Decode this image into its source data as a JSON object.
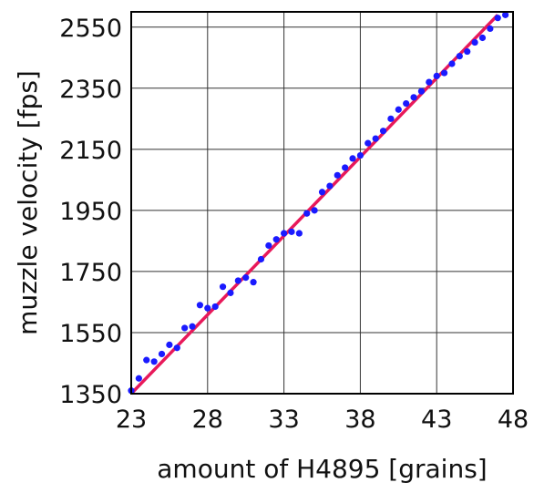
{
  "chart_data": {
    "type": "scatter",
    "title": "",
    "xlabel": "amount of H4895 [grains]",
    "ylabel": "muzzle velocity [fps]",
    "xlim": [
      23,
      48
    ],
    "ylim": [
      1350,
      2600
    ],
    "xticks": [
      23,
      28,
      33,
      38,
      43,
      48
    ],
    "yticks": [
      1350,
      1550,
      1750,
      1950,
      2150,
      2350,
      2550
    ],
    "grid": true,
    "point_color": "#1a1aff",
    "fit_color": "#e8195a",
    "series": [
      {
        "type": "scatter",
        "x": [
          23.0,
          23.5,
          24.0,
          24.5,
          25.0,
          25.5,
          26.0,
          26.5,
          27.0,
          27.5,
          28.0,
          28.5,
          29.0,
          29.5,
          30.0,
          30.5,
          31.0,
          31.5,
          32.0,
          32.5,
          33.0,
          33.5,
          34.0,
          34.5,
          35.0,
          35.5,
          36.0,
          36.5,
          37.0,
          37.5,
          38.0,
          38.5,
          39.0,
          39.5,
          40.0,
          40.5,
          41.0,
          41.5,
          42.0,
          42.5,
          43.0,
          43.5,
          44.0,
          44.5,
          45.0,
          45.5,
          46.0,
          46.5,
          47.0,
          47.5
        ],
        "y": [
          1360,
          1400,
          1460,
          1455,
          1480,
          1510,
          1500,
          1565,
          1570,
          1640,
          1630,
          1635,
          1700,
          1680,
          1720,
          1730,
          1715,
          1790,
          1835,
          1855,
          1875,
          1880,
          1875,
          1940,
          1950,
          2010,
          2030,
          2065,
          2090,
          2120,
          2130,
          2170,
          2185,
          2210,
          2250,
          2280,
          2300,
          2320,
          2340,
          2370,
          2390,
          2400,
          2430,
          2455,
          2470,
          2500,
          2515,
          2545,
          2580,
          2590
        ]
      },
      {
        "type": "line",
        "x": [
          23,
          47
        ],
        "y": [
          1350,
          2590
        ]
      }
    ]
  }
}
